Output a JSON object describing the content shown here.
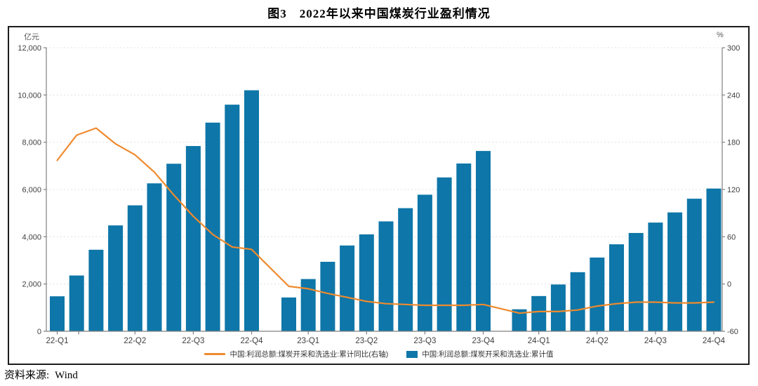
{
  "page": {
    "title": "图3　2022年以来中国煤炭行业盈利情况",
    "source_label": "资料来源:",
    "source_value": "Wind"
  },
  "axes": {
    "left_unit": "亿元",
    "right_unit": "%",
    "left_ticks": [
      "0",
      "2,000",
      "4,000",
      "6,000",
      "8,000",
      "10,000",
      "12,000"
    ],
    "right_ticks": [
      "-60",
      "0",
      "60",
      "120",
      "180",
      "240",
      "300"
    ],
    "x_tick_labels": [
      "22-Q1",
      "22-Q2",
      "22-Q3",
      "22-Q4",
      "23-Q1",
      "23-Q2",
      "23-Q3",
      "23-Q4",
      "24-Q1",
      "24-Q2",
      "24-Q3",
      "24-Q4"
    ]
  },
  "legend": {
    "line": {
      "label": "中国:利润总额:煤炭开采和洗选业:累计同比(右轴)",
      "color": "#ef8a2e"
    },
    "bar": {
      "label": "中国:利润总额:煤炭开采和洗选业:累计值",
      "color": "#0e76a8"
    }
  },
  "chart_data": {
    "type": "combo",
    "title": "图3　2022年以来中国煤炭行业盈利情况",
    "x_months": [
      "2022-02",
      "2022-03",
      "2022-04",
      "2022-05",
      "2022-06",
      "2022-07",
      "2022-08",
      "2022-09",
      "2022-10",
      "2022-11",
      "2022-12",
      "2023-02",
      "2023-03",
      "2023-04",
      "2023-05",
      "2023-06",
      "2023-07",
      "2023-08",
      "2023-09",
      "2023-10",
      "2023-11",
      "2023-12",
      "2024-02",
      "2024-03",
      "2024-04",
      "2024-05",
      "2024-06",
      "2024-07",
      "2024-08",
      "2024-09",
      "2024-10",
      "2024-11",
      "2024-12"
    ],
    "x_tick_labels": [
      "22-Q1",
      "22-Q2",
      "22-Q3",
      "22-Q4",
      "23-Q1",
      "23-Q2",
      "23-Q3",
      "23-Q4",
      "24-Q1",
      "24-Q2",
      "24-Q3",
      "24-Q4"
    ],
    "series": [
      {
        "name": "中国:利润总额:煤炭开采和洗选业:累计值",
        "type": "bar",
        "axis": "left",
        "unit": "亿元",
        "color": "#0e76a8",
        "values": [
          1480,
          2360,
          3450,
          4480,
          5330,
          6260,
          7090,
          7840,
          8830,
          9590,
          10200,
          1430,
          2210,
          2940,
          3630,
          4100,
          4650,
          5210,
          5780,
          6510,
          7100,
          7630,
          930,
          1490,
          1980,
          2500,
          3120,
          3680,
          4160,
          4600,
          5030,
          5610,
          6040
        ]
      },
      {
        "name": "中国:利润总额:煤炭开采和洗选业:累计同比(右轴)",
        "type": "line",
        "axis": "right",
        "unit": "%",
        "color": "#ef8a2e",
        "values": [
          157,
          189,
          198,
          178,
          164,
          142,
          113,
          86,
          63,
          47,
          44,
          -3,
          -6,
          -12,
          -17,
          -22,
          -25,
          -26,
          -27,
          -27,
          -27,
          -26,
          -37,
          -35,
          -35,
          -33,
          -28,
          -25,
          -23,
          -23,
          -24,
          -24,
          -23
        ]
      }
    ],
    "left_axis": {
      "label": "亿元",
      "min": 0,
      "max": 12000,
      "step": 2000
    },
    "right_axis": {
      "label": "%",
      "min": -60,
      "max": 300,
      "step": 60
    },
    "grid": "horizontal-dashed",
    "legend_position": "bottom-center"
  },
  "style_colors": {
    "bar": "#0e76a8",
    "line": "#ef8a2e",
    "gridline": "#e0e0e0",
    "axis": "#808080",
    "tick_text": "#404040"
  }
}
